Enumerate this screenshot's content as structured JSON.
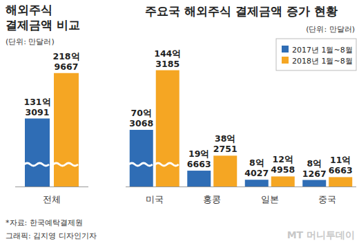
{
  "chart_data": [
    {
      "type": "bar",
      "title": "해외주식 결제금액 비교",
      "subtitle": "(단위: 만달러)",
      "categories": [
        "전체"
      ],
      "series": [
        {
          "color": "#2f6db5",
          "values": [
            1313091
          ],
          "value_labels": [
            "131억 3091"
          ]
        },
        {
          "color": "#f5a623",
          "values": [
            2189667
          ],
          "value_labels": [
            "218억 9667"
          ]
        }
      ],
      "ylim": [
        0,
        2800000
      ],
      "data_labels": true,
      "tick_labels": "x"
    },
    {
      "type": "bar",
      "title": "주요국 해외주식 결제금액 증가 현황",
      "subtitle": "(단위: 만달러)",
      "categories": [
        "미국",
        "홍콩",
        "일본",
        "중국"
      ],
      "series": [
        {
          "name": "2017년 1월~8월",
          "color": "#2f6db5",
          "values": [
            703068,
            196663,
            84027,
            81267
          ],
          "value_labels": [
            "70억 3068",
            "19억 6663",
            "8억 4027",
            "8억 1267"
          ]
        },
        {
          "name": "2018년 1월~8월",
          "color": "#f5a623",
          "values": [
            1443185,
            382751,
            124958,
            116663
          ],
          "value_labels": [
            "144억 3185",
            "38억 2751",
            "12억 4958",
            "11억 6663"
          ]
        }
      ],
      "ylim": [
        0,
        1800000
      ],
      "legend": "top-right",
      "data_labels": true,
      "tick_labels": "x"
    }
  ],
  "source": "*자료: 한국예탁결제원",
  "credit": "그래픽: 김지영 디자인기자",
  "watermark": "MT 머니투데이"
}
